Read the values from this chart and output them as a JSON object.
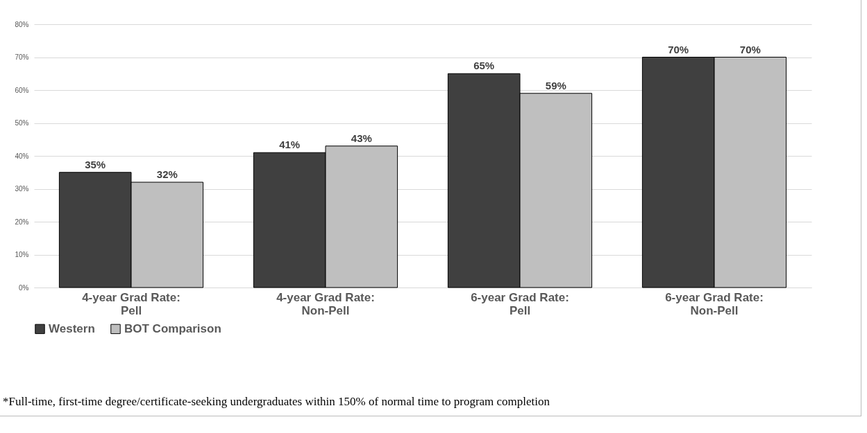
{
  "chart_data": {
    "type": "bar",
    "categories": [
      "4-year Grad Rate: Pell",
      "4-year Grad Rate: Non-Pell",
      "6-year Grad Rate: Pell",
      "6-year Grad Rate: Non-Pell"
    ],
    "series": [
      {
        "name": "Western",
        "color": "#404040",
        "values": [
          35,
          41,
          65,
          70
        ],
        "value_labels": [
          "35%",
          "41%",
          "65%",
          "70%"
        ]
      },
      {
        "name": "BOT Comparison",
        "color": "#bfbfbf",
        "values": [
          32,
          43,
          59,
          70
        ],
        "value_labels": [
          "32%",
          "43%",
          "59%",
          "70%"
        ]
      }
    ],
    "ylim": [
      0,
      80
    ],
    "yticks": [
      {
        "value": 0,
        "label": "0%"
      },
      {
        "value": 10,
        "label": "10%"
      },
      {
        "value": 20,
        "label": "20%"
      },
      {
        "value": 30,
        "label": "30%"
      },
      {
        "value": 40,
        "label": "40%"
      },
      {
        "value": 50,
        "label": "50%"
      },
      {
        "value": 60,
        "label": "60%"
      },
      {
        "value": 70,
        "label": "70%"
      },
      {
        "value": 80,
        "label": "80%"
      }
    ],
    "grid": "y",
    "legend": "bottom",
    "annotations": [
      "*Full-time, first-time degree/certificate-seeking undergraduates within 150% of normal time to program completion"
    ]
  }
}
